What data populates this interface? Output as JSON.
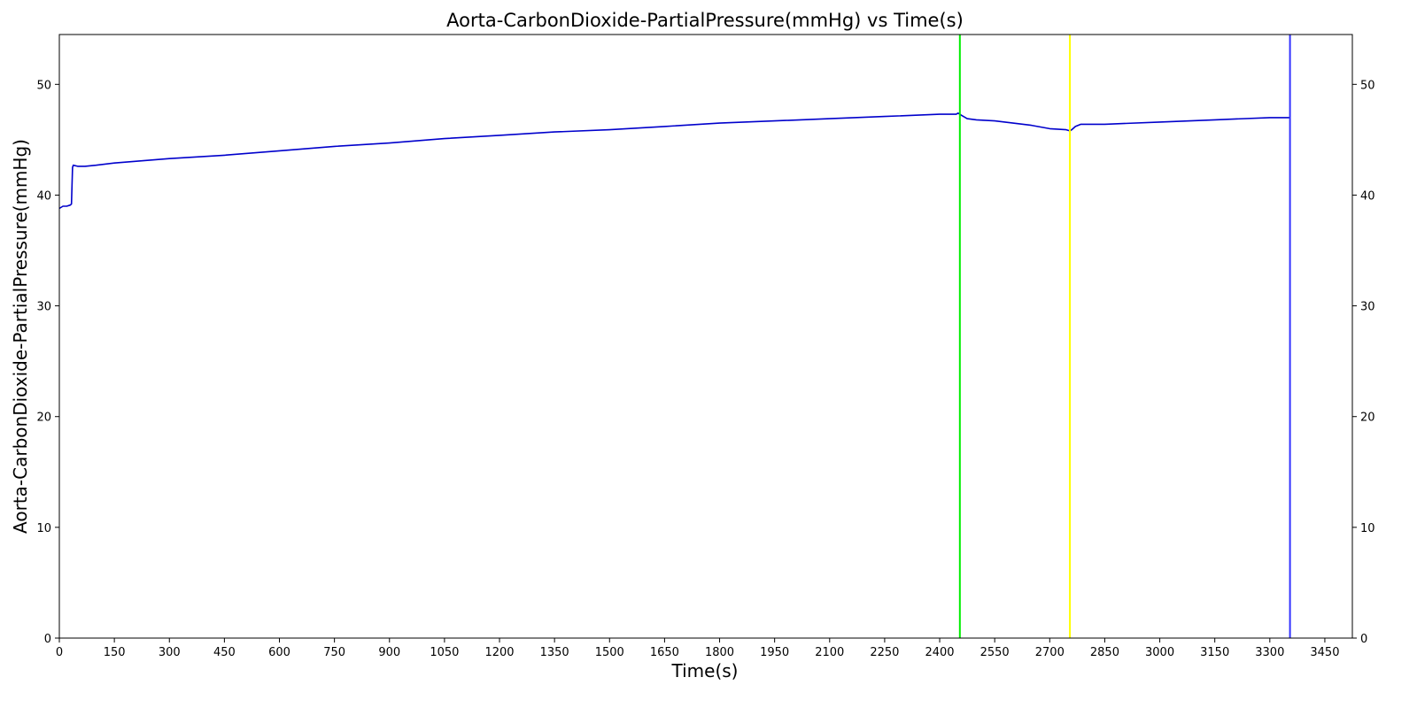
{
  "chart_data": {
    "type": "line",
    "title": "Aorta-CarbonDioxide-PartialPressure(mmHg) vs Time(s)",
    "xlabel": "Time(s)",
    "ylabel": "Aorta-CarbonDioxide-PartialPressure(mmHg)",
    "xlim": [
      0,
      3525
    ],
    "ylim": [
      0,
      54.5
    ],
    "x_ticks": [
      0,
      150,
      300,
      450,
      600,
      750,
      900,
      1050,
      1200,
      1350,
      1500,
      1650,
      1800,
      1950,
      2100,
      2250,
      2400,
      2550,
      2700,
      2850,
      3000,
      3150,
      3300,
      3450
    ],
    "x_tick_labels": [
      "0",
      "150",
      "300",
      "450",
      "600",
      "750",
      "900",
      "1050",
      "1200",
      "1350",
      "1500",
      "1650",
      "1800",
      "1950",
      "2100",
      "2250",
      "2400",
      "2550",
      "2700",
      "2850",
      "3000",
      "3150",
      "3300",
      "3450"
    ],
    "y_ticks": [
      0,
      10,
      20,
      30,
      40,
      50
    ],
    "y_tick_labels": [
      "0",
      "10",
      "20",
      "30",
      "40",
      "50"
    ],
    "right_y_axis": true,
    "grid": false,
    "series": [
      {
        "color": "#0000cc",
        "x": [
          0,
          10,
          20,
          30,
          33,
          36,
          38,
          50,
          70,
          100,
          150,
          300,
          450,
          600,
          750,
          900,
          1050,
          1200,
          1350,
          1500,
          1650,
          1800,
          1950,
          2100,
          2250,
          2400,
          2445,
          2450,
          2460,
          2475,
          2500,
          2550,
          2600,
          2650,
          2700,
          2745,
          2755,
          2760,
          2770,
          2785,
          2800,
          2850,
          3000,
          3150,
          3300,
          3355
        ],
        "y": [
          38.8,
          39.0,
          39.0,
          39.1,
          39.2,
          42.5,
          42.7,
          42.6,
          42.6,
          42.7,
          42.9,
          43.3,
          43.6,
          44.0,
          44.4,
          44.7,
          45.1,
          45.4,
          45.7,
          45.9,
          46.2,
          46.5,
          46.7,
          46.9,
          47.1,
          47.3,
          47.3,
          47.4,
          47.2,
          46.9,
          46.8,
          46.7,
          46.5,
          46.3,
          46.0,
          45.9,
          45.8,
          45.9,
          46.2,
          46.4,
          46.4,
          46.4,
          46.6,
          46.8,
          47.0,
          47.0
        ]
      }
    ],
    "vertical_lines": [
      {
        "x": 2455,
        "color": "#00ee00"
      },
      {
        "x": 2755,
        "color": "#ffff00"
      },
      {
        "x": 3355,
        "color": "#3333ff"
      }
    ]
  }
}
